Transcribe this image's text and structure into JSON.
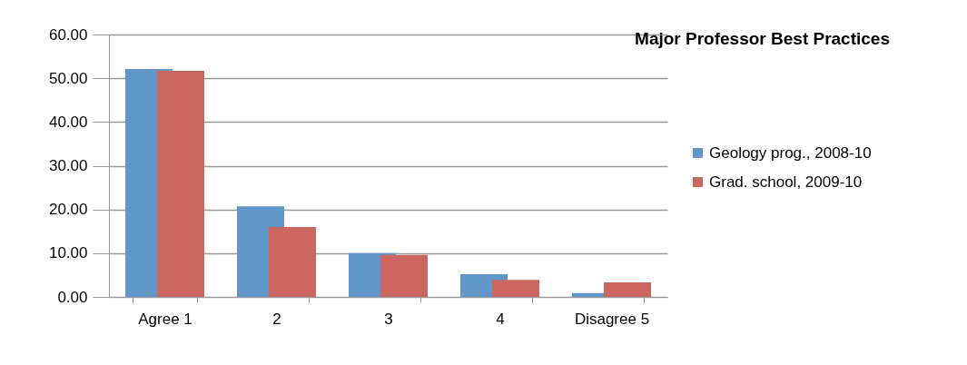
{
  "chart_data": {
    "type": "bar",
    "title": "Major Professor Best Practices",
    "categories": [
      "Agree  1",
      "2",
      "3",
      "4",
      "Disagree  5"
    ],
    "series": [
      {
        "name": "Geology prog., 2008-10",
        "color": "#6096c8",
        "values": [
          52.1,
          20.7,
          10.0,
          5.2,
          0.9
        ]
      },
      {
        "name": "Grad. school, 2009-10",
        "color": "#cc6660",
        "values": [
          51.7,
          16.0,
          9.6,
          3.9,
          3.3
        ]
      }
    ],
    "ylim": [
      0,
      60
    ],
    "yticks": [
      {
        "value": 0,
        "label": "0.00"
      },
      {
        "value": 10,
        "label": "10.00"
      },
      {
        "value": 20,
        "label": "20.00"
      },
      {
        "value": 30,
        "label": "30.00"
      },
      {
        "value": 40,
        "label": "40.00"
      },
      {
        "value": 50,
        "label": "50.00"
      },
      {
        "value": 60,
        "label": "60.00"
      }
    ],
    "grid": "y",
    "legend": "right"
  }
}
